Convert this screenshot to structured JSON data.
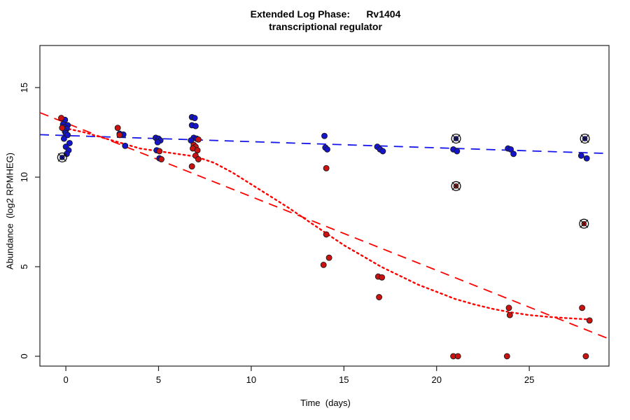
{
  "chart_data": {
    "type": "scatter",
    "title_line1": "Extended Log Phase:      Rv1404",
    "title_line2": "transcriptional regulator",
    "xlabel": "Time  (days)",
    "ylabel": "Abundance  (log2 RPMHEG)",
    "x_ticks": [
      0,
      5,
      10,
      15,
      20,
      25
    ],
    "y_ticks": [
      0,
      5,
      10,
      15
    ],
    "xlim": [
      -1.4,
      29.3
    ],
    "ylim": [
      -0.55,
      17.35
    ],
    "grid": false,
    "legend": "none",
    "colors": {
      "blue_point_fill": "#1414CC",
      "red_point_fill": "#CC1111",
      "point_edge": "#1a1a1a",
      "blue_line": "#1515EE",
      "red_line": "#FF0000",
      "axis": "#222222",
      "flag_marker": "#111111"
    },
    "series": [
      {
        "name": "blue-condition",
        "marker": "filled-circle",
        "points": [
          [
            -0.05,
            13.2
          ],
          [
            -0.15,
            12.95
          ],
          [
            0.1,
            12.9
          ],
          [
            -0.1,
            12.8
          ],
          [
            0.05,
            12.7
          ],
          [
            -0.05,
            12.55
          ],
          [
            0.0,
            12.45
          ],
          [
            0.1,
            12.35
          ],
          [
            -0.1,
            12.15
          ],
          [
            0.2,
            11.9
          ],
          [
            0.0,
            11.7
          ],
          [
            0.15,
            11.5
          ],
          [
            0.05,
            11.3
          ],
          [
            2.9,
            12.42
          ],
          [
            3.1,
            12.38
          ],
          [
            3.2,
            11.75
          ],
          [
            4.85,
            12.2
          ],
          [
            5.0,
            12.15
          ],
          [
            5.1,
            12.05
          ],
          [
            4.95,
            11.95
          ],
          [
            4.9,
            11.5
          ],
          [
            5.05,
            11.05
          ],
          [
            6.8,
            13.35
          ],
          [
            6.95,
            13.3
          ],
          [
            6.8,
            12.9
          ],
          [
            7.0,
            12.85
          ],
          [
            6.9,
            12.2
          ],
          [
            7.05,
            12.15
          ],
          [
            6.75,
            12.05
          ],
          [
            13.95,
            12.3
          ],
          [
            14.0,
            11.65
          ],
          [
            14.1,
            11.55
          ],
          [
            16.8,
            11.7
          ],
          [
            16.95,
            11.55
          ],
          [
            17.1,
            11.45
          ],
          [
            20.9,
            11.55
          ],
          [
            21.1,
            11.45
          ],
          [
            23.85,
            11.6
          ],
          [
            24.0,
            11.55
          ],
          [
            24.15,
            11.3
          ],
          [
            27.8,
            11.2
          ],
          [
            28.1,
            11.05
          ]
        ],
        "circled_points": [
          [
            -0.2,
            11.1
          ],
          [
            21.05,
            12.15
          ],
          [
            28.0,
            12.15
          ]
        ]
      },
      {
        "name": "red-condition",
        "marker": "filled-circle",
        "points": [
          [
            -0.25,
            13.3
          ],
          [
            -0.2,
            12.75
          ],
          [
            2.8,
            12.75
          ],
          [
            2.9,
            12.35
          ],
          [
            5.05,
            11.45
          ],
          [
            5.15,
            11.0
          ],
          [
            7.15,
            12.1
          ],
          [
            6.9,
            11.8
          ],
          [
            7.0,
            11.7
          ],
          [
            6.85,
            11.6
          ],
          [
            7.1,
            11.5
          ],
          [
            7.0,
            11.2
          ],
          [
            7.15,
            11.0
          ],
          [
            6.8,
            10.6
          ],
          [
            14.05,
            10.5
          ],
          [
            14.05,
            6.8
          ],
          [
            14.2,
            5.5
          ],
          [
            13.9,
            5.1
          ],
          [
            16.85,
            4.45
          ],
          [
            17.05,
            4.4
          ],
          [
            16.9,
            3.3
          ],
          [
            20.9,
            0.0
          ],
          [
            21.15,
            0.0
          ],
          [
            23.9,
            2.7
          ],
          [
            23.95,
            2.3
          ],
          [
            23.8,
            0.0
          ],
          [
            27.85,
            2.7
          ],
          [
            28.25,
            2.0
          ],
          [
            28.05,
            0.0
          ]
        ],
        "circled_points": [
          [
            21.05,
            9.5
          ],
          [
            27.95,
            7.4
          ]
        ]
      }
    ],
    "lines": [
      {
        "name": "blue-linear-trend",
        "style": "dashed",
        "color": "#1515EE",
        "points": [
          [
            -1.4,
            12.37
          ],
          [
            29.3,
            11.32
          ]
        ]
      },
      {
        "name": "red-linear-trend",
        "style": "dashed",
        "color": "#FF0000",
        "points": [
          [
            -1.4,
            13.6
          ],
          [
            29.3,
            0.97
          ]
        ]
      },
      {
        "name": "red-loess-trend",
        "style": "dotted",
        "color": "#FF0000",
        "points": [
          [
            -0.1,
            12.75
          ],
          [
            1,
            12.5
          ],
          [
            2,
            12.2
          ],
          [
            3,
            11.9
          ],
          [
            4,
            11.6
          ],
          [
            5,
            11.45
          ],
          [
            6,
            11.3
          ],
          [
            7,
            11.15
          ],
          [
            8,
            10.8
          ],
          [
            9,
            10.25
          ],
          [
            10,
            9.6
          ],
          [
            11,
            8.95
          ],
          [
            12,
            8.3
          ],
          [
            13,
            7.6
          ],
          [
            14,
            6.9
          ],
          [
            15,
            6.2
          ],
          [
            16,
            5.6
          ],
          [
            17,
            5.0
          ],
          [
            18,
            4.5
          ],
          [
            19,
            4.0
          ],
          [
            20,
            3.6
          ],
          [
            21,
            3.2
          ],
          [
            22,
            2.9
          ],
          [
            23,
            2.65
          ],
          [
            24,
            2.45
          ],
          [
            25,
            2.3
          ],
          [
            26,
            2.2
          ],
          [
            27,
            2.13
          ],
          [
            28.3,
            2.05
          ]
        ]
      }
    ]
  }
}
